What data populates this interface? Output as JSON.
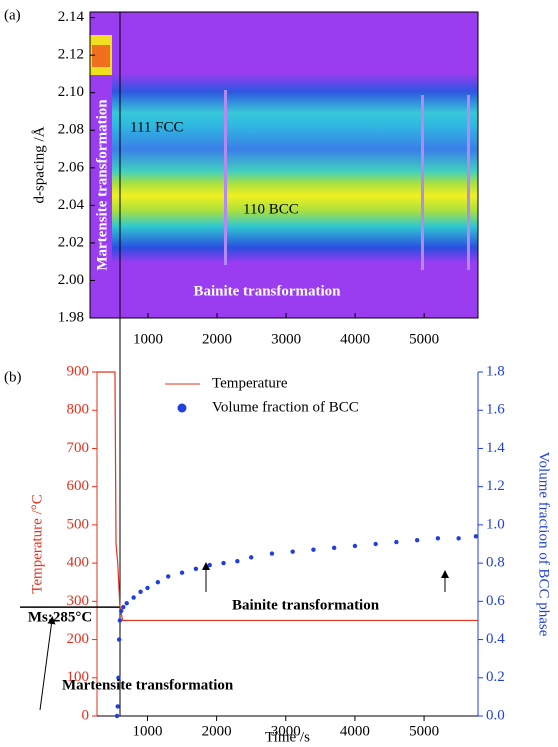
{
  "chart_data": [
    {
      "type": "heatmap",
      "label": "(a)",
      "ylabel": "d-spacing /Å",
      "xlim": [
        160,
        5780
      ],
      "ylim": [
        1.98,
        2.143
      ],
      "xticks": [
        1000,
        2000,
        3000,
        4000,
        5000
      ],
      "yticks": [
        1.98,
        {
          "value": 2.0,
          "label": "2.00"
        },
        2.02,
        2.04,
        2.06,
        2.08,
        {
          "value": 2.1,
          "label": "2.10"
        },
        2.12,
        2.14
      ],
      "annotations": [
        "111 FCC",
        "110 BCC",
        "Martensite transformation",
        "Bainite transformation"
      ]
    },
    {
      "type": "line",
      "label": "(b)",
      "xlabel": "Time /s",
      "ylabel": "Temperature /°C",
      "y2label": "Volume fraction of BCC phase",
      "xlim": [
        270,
        5780
      ],
      "ylim": [
        0,
        900
      ],
      "y2lim": [
        0,
        1.8
      ],
      "xticks": [
        1000,
        2000,
        3000,
        4000,
        5000
      ],
      "yticks": [
        0,
        100,
        200,
        300,
        400,
        500,
        600,
        700,
        800,
        900
      ],
      "y2ticks": [
        {
          "value": 0,
          "label": "0.0"
        },
        0.2,
        0.4,
        0.6,
        0.8,
        {
          "value": 1,
          "label": "1.0"
        },
        1.2,
        1.4,
        1.6,
        1.8
      ],
      "series": [
        {
          "name": "Temperature",
          "color": "#e8301c",
          "x": [
            270,
            530,
            545,
            570,
            600,
            640,
            5780
          ],
          "values": [
            900,
            900,
            450,
            400,
            290,
            250,
            250
          ]
        },
        {
          "name": "Volume fraction of BCC",
          "color": "#1f3fe0",
          "axis": "y2",
          "marker": "dot",
          "x": [
            560,
            570,
            580,
            590,
            600,
            620,
            650,
            700,
            800,
            900,
            1000,
            1150,
            1300,
            1500,
            1700,
            1900,
            2100,
            2300,
            2500,
            2800,
            3100,
            3400,
            3700,
            4000,
            4300,
            4600,
            4900,
            5200,
            5500,
            5750
          ],
          "values": [
            0.0,
            0.05,
            0.2,
            0.4,
            0.5,
            0.55,
            0.57,
            0.59,
            0.62,
            0.65,
            0.67,
            0.7,
            0.73,
            0.75,
            0.77,
            0.79,
            0.8,
            0.81,
            0.83,
            0.85,
            0.86,
            0.87,
            0.88,
            0.89,
            0.9,
            0.91,
            0.92,
            0.93,
            0.93,
            0.94
          ]
        }
      ],
      "legend": "top",
      "reference_lines": [
        {
          "value": 285,
          "label": "Ms:285°C"
        }
      ],
      "annotations": [
        "Bainite transformation",
        "Martensite transformation"
      ]
    }
  ]
}
